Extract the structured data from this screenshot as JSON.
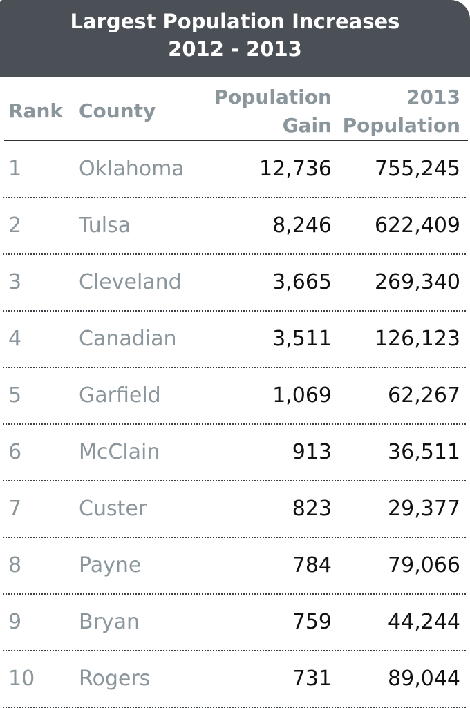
{
  "chart_data": {
    "type": "table",
    "title_lines": [
      "Largest Population Increases",
      "2012 - 2013"
    ],
    "columns": [
      {
        "key": "rank",
        "label_lines": [
          "Rank"
        ]
      },
      {
        "key": "county",
        "label_lines": [
          "County"
        ]
      },
      {
        "key": "gain",
        "label_lines": [
          "Population",
          "Gain"
        ]
      },
      {
        "key": "population_2013",
        "label_lines": [
          "2013",
          "Population"
        ]
      }
    ],
    "rows": [
      {
        "rank": "1",
        "county": "Oklahoma",
        "gain": "12,736",
        "population_2013": "755,245"
      },
      {
        "rank": "2",
        "county": "Tulsa",
        "gain": "8,246",
        "population_2013": "622,409"
      },
      {
        "rank": "3",
        "county": "Cleveland",
        "gain": "3,665",
        "population_2013": "269,340"
      },
      {
        "rank": "4",
        "county": "Canadian",
        "gain": "3,511",
        "population_2013": "126,123"
      },
      {
        "rank": "5",
        "county": "Garfield",
        "gain": "1,069",
        "population_2013": "62,267"
      },
      {
        "rank": "6",
        "county": "McClain",
        "gain": "913",
        "population_2013": "36,511"
      },
      {
        "rank": "7",
        "county": "Custer",
        "gain": "823",
        "population_2013": "29,377"
      },
      {
        "rank": "8",
        "county": "Payne",
        "gain": "784",
        "population_2013": "79,066"
      },
      {
        "rank": "9",
        "county": "Bryan",
        "gain": "759",
        "population_2013": "44,244"
      },
      {
        "rank": "10",
        "county": "Rogers",
        "gain": "731",
        "population_2013": "89,044"
      }
    ]
  },
  "colors": {
    "title_background": "#4a5055",
    "title_text": "#ffffff",
    "label_text": "#8a959c",
    "value_text": "#111111",
    "rule": "#2c3135"
  }
}
